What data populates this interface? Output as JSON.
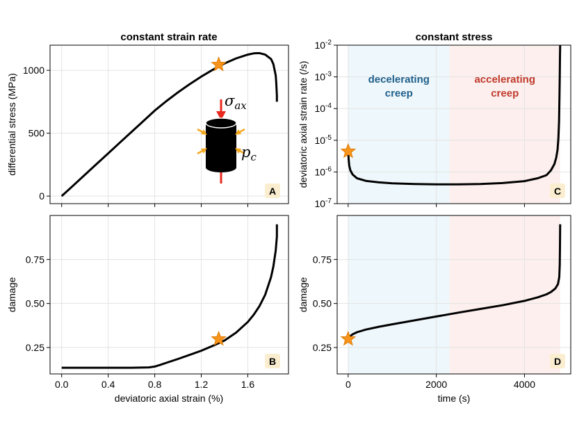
{
  "colors": {
    "curve": "#000000",
    "grid": "#e3e3e3",
    "frame": "#000000",
    "star": "#f7941d",
    "star_stroke": "#e07b00",
    "decel_bg": "#eef7fb",
    "accel_bg": "#fcefed",
    "decel_text": "#1f5f8b",
    "accel_text": "#c0392b",
    "badge_bg": "#fbeed0",
    "arrow_red": "#e8281c",
    "arrow_orange": "#f5a71e"
  },
  "chart_data": [
    {
      "id": "A",
      "type": "line",
      "title": "constant strain rate",
      "xlabel": "",
      "ylabel": "differential stress (MPa)",
      "xlim": [
        -0.1,
        1.95
      ],
      "ylim": [
        -60,
        1200
      ],
      "xticks": [
        0.0,
        0.4,
        0.8,
        1.2,
        1.6
      ],
      "xtick_labels": [],
      "yticks": [
        0,
        500,
        1000
      ],
      "ytick_labels": [
        "0",
        "500",
        "1000"
      ],
      "x": [
        0,
        0.1,
        0.2,
        0.3,
        0.4,
        0.5,
        0.6,
        0.7,
        0.8,
        0.9,
        1.0,
        1.1,
        1.2,
        1.3,
        1.35,
        1.4,
        1.5,
        1.6,
        1.65,
        1.7,
        1.75,
        1.8,
        1.82,
        1.84,
        1.845,
        1.85,
        1.85
      ],
      "y": [
        0,
        85,
        170,
        255,
        340,
        425,
        510,
        595,
        680,
        755,
        825,
        890,
        950,
        1005,
        1030,
        1055,
        1095,
        1125,
        1135,
        1137,
        1125,
        1090,
        1050,
        960,
        900,
        800,
        750
      ],
      "star": {
        "x": 1.35,
        "y": 1045
      },
      "panel_label": "A",
      "inset": {
        "sigma_sub": "ax",
        "p_sub": "c"
      }
    },
    {
      "id": "B",
      "type": "line",
      "title": "",
      "xlabel": "deviatoric axial strain (%)",
      "ylabel": "damage",
      "xlim": [
        -0.1,
        1.95
      ],
      "ylim": [
        0.1,
        1.0
      ],
      "xticks": [
        0.0,
        0.4,
        0.8,
        1.2,
        1.6
      ],
      "xtick_labels": [
        "0.0",
        "0.4",
        "0.8",
        "1.2",
        "1.6"
      ],
      "yticks": [
        0.25,
        0.5,
        0.75
      ],
      "ytick_labels": [
        "0.25",
        "0.50",
        "0.75"
      ],
      "x": [
        0,
        0.2,
        0.4,
        0.6,
        0.75,
        0.8,
        0.85,
        0.9,
        1.0,
        1.1,
        1.2,
        1.3,
        1.35,
        1.4,
        1.5,
        1.6,
        1.65,
        1.7,
        1.75,
        1.8,
        1.82,
        1.84,
        1.85,
        1.85
      ],
      "y": [
        0.135,
        0.135,
        0.135,
        0.135,
        0.137,
        0.142,
        0.152,
        0.163,
        0.185,
        0.208,
        0.232,
        0.26,
        0.275,
        0.29,
        0.335,
        0.395,
        0.435,
        0.485,
        0.55,
        0.65,
        0.71,
        0.8,
        0.88,
        0.95
      ],
      "star": {
        "x": 1.35,
        "y": 0.298
      },
      "panel_label": "B"
    },
    {
      "id": "C",
      "type": "line",
      "title": "constant stress",
      "xlabel": "",
      "ylabel": "deviatoric axial strain rate (/s)",
      "yscale": "log",
      "xlim": [
        -250,
        5050
      ],
      "ylim_log10": [
        -7,
        -2
      ],
      "xticks": [
        0,
        2000,
        4000
      ],
      "xtick_labels": [],
      "yticks_log10": [
        -7,
        -6,
        -5,
        -4,
        -3,
        -2
      ],
      "ytick_labels": [
        "10-7",
        "10-6",
        "10-5",
        "10-4",
        "10-3",
        "10-2"
      ],
      "x": [
        0,
        10,
        25,
        50,
        100,
        200,
        400,
        700,
        1000,
        1500,
        2000,
        2500,
        3000,
        3500,
        4000,
        4300,
        4500,
        4600,
        4680,
        4720,
        4750,
        4770,
        4785,
        4795,
        4800,
        4805,
        4810
      ],
      "y_log10": [
        -5.3,
        -5.6,
        -5.8,
        -5.95,
        -6.08,
        -6.2,
        -6.28,
        -6.33,
        -6.36,
        -6.38,
        -6.39,
        -6.39,
        -6.38,
        -6.35,
        -6.29,
        -6.2,
        -6.1,
        -5.95,
        -5.75,
        -5.55,
        -5.3,
        -4.95,
        -4.4,
        -3.6,
        -3.0,
        -2.4,
        -2.0
      ],
      "star": {
        "x": 0,
        "y_log10": -5.35
      },
      "regions": [
        {
          "label_line1": "decelerating",
          "label_line2": "creep",
          "x0": 0,
          "x1": 2300,
          "kind": "decel"
        },
        {
          "label_line1": "accelerating",
          "label_line2": "creep",
          "x0": 2300,
          "x1": 4810,
          "kind": "accel"
        }
      ],
      "panel_label": "C"
    },
    {
      "id": "D",
      "type": "line",
      "title": "",
      "xlabel": "time (s)",
      "ylabel": "damage",
      "xlim": [
        -250,
        5050
      ],
      "ylim": [
        0.1,
        1.0
      ],
      "xticks": [
        0,
        2000,
        4000
      ],
      "xtick_labels": [
        "0",
        "2000",
        "4000"
      ],
      "yticks": [
        0.25,
        0.5,
        0.75
      ],
      "ytick_labels": [
        "0.25",
        "0.50",
        "0.75"
      ],
      "x": [
        0,
        50,
        100,
        200,
        400,
        700,
        1000,
        1500,
        2000,
        2500,
        3000,
        3500,
        4000,
        4300,
        4500,
        4600,
        4700,
        4760,
        4790,
        4800,
        4805,
        4810
      ],
      "y": [
        0.3,
        0.315,
        0.325,
        0.337,
        0.352,
        0.368,
        0.382,
        0.404,
        0.426,
        0.448,
        0.469,
        0.49,
        0.515,
        0.535,
        0.552,
        0.565,
        0.585,
        0.61,
        0.65,
        0.72,
        0.82,
        0.95
      ],
      "star": {
        "x": 0,
        "y": 0.298
      },
      "regions": [
        {
          "x0": 0,
          "x1": 2300,
          "kind": "decel"
        },
        {
          "x0": 2300,
          "x1": 4810,
          "kind": "accel"
        }
      ],
      "panel_label": "D"
    }
  ]
}
